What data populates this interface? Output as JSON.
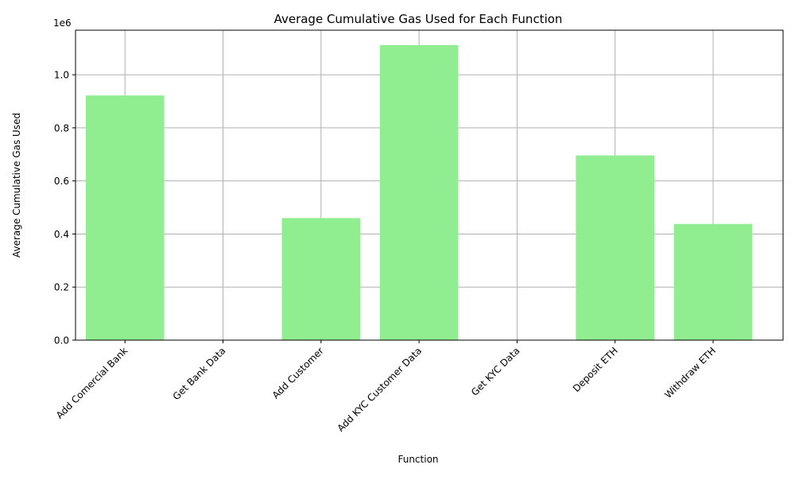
{
  "chart_data": {
    "type": "bar",
    "title": "Average Cumulative Gas Used for Each Function",
    "xlabel": "Function",
    "ylabel": "Average Cumulative Gas Used",
    "y_offset_label": "1e6",
    "y_scale": 1000000,
    "categories": [
      "Add Comercial Bank",
      "Get Bank Data",
      "Add Customer",
      "Add KYC Customer Data",
      "Get KYC Data",
      "Deposit ETH",
      "Withdraw ETH"
    ],
    "values": [
      922000,
      0,
      460000,
      1112000,
      0,
      696000,
      438000
    ],
    "ylim": [
      0,
      1168000
    ],
    "yticks": [
      0,
      200000,
      400000,
      600000,
      800000,
      1000000
    ],
    "ytick_labels": [
      "0.0",
      "0.2",
      "0.4",
      "0.6",
      "0.8",
      "1.0"
    ],
    "grid": true,
    "bar_color": "#90ee90",
    "grid_color": "#b0b0b0"
  }
}
